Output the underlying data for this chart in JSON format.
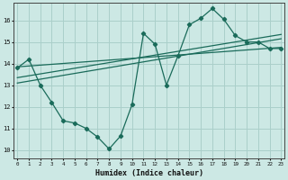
{
  "title": "",
  "xlabel": "Humidex (Indice chaleur)",
  "background_color": "#cce8e4",
  "grid_color": "#aacfca",
  "line_color": "#1a6b5a",
  "x_ticks": [
    0,
    1,
    2,
    3,
    4,
    5,
    6,
    7,
    8,
    9,
    10,
    11,
    12,
    13,
    14,
    15,
    16,
    17,
    18,
    19,
    20,
    21,
    22,
    23
  ],
  "y_ticks": [
    10,
    11,
    12,
    13,
    14,
    15,
    16
  ],
  "ylim": [
    9.6,
    16.8
  ],
  "xlim": [
    -0.3,
    23.3
  ],
  "series1_x": [
    0,
    1,
    2,
    3,
    4,
    5,
    6,
    7,
    8,
    9,
    10,
    11,
    12,
    13,
    14,
    15,
    16,
    17,
    18,
    19,
    20,
    21,
    22,
    23
  ],
  "series1_y": [
    13.8,
    14.2,
    13.0,
    12.2,
    11.35,
    11.25,
    11.0,
    10.6,
    10.05,
    10.65,
    12.1,
    15.4,
    14.9,
    13.0,
    14.35,
    15.8,
    16.1,
    16.55,
    16.05,
    15.3,
    15.0,
    15.0,
    14.7,
    14.7
  ],
  "series2_x": [
    0,
    23
  ],
  "series2_y": [
    13.85,
    14.75
  ],
  "series3_x": [
    0,
    23
  ],
  "series3_y": [
    13.35,
    15.35
  ],
  "series4_x": [
    0,
    23
  ],
  "series4_y": [
    13.1,
    15.15
  ]
}
